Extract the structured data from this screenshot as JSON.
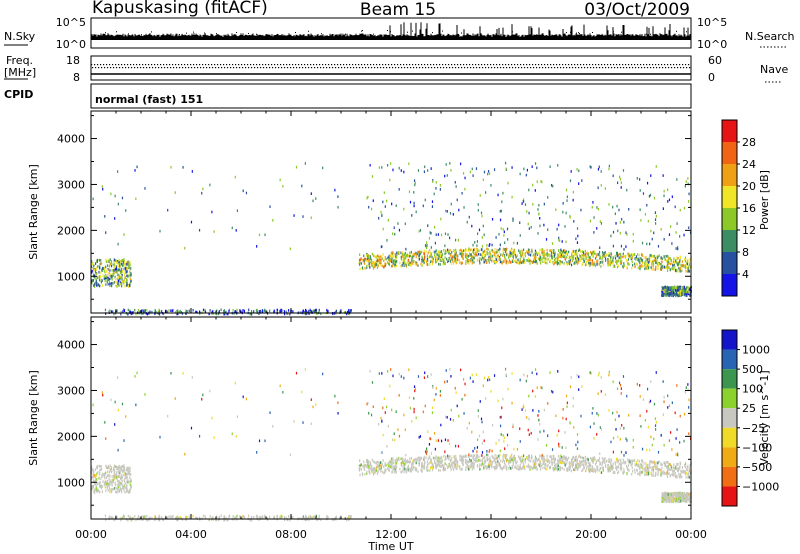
{
  "header": {
    "station": "Kapuskasing (fitACF)",
    "beam": "Beam 15",
    "date": "03/Oct/2009"
  },
  "top_panels": {
    "nsky": {
      "label": "N.Sky",
      "ticks": [
        "10^5",
        "10^0"
      ]
    },
    "nsearch": {
      "label": "N.Search",
      "ticks": [
        "10^5",
        "10^0"
      ]
    },
    "freq": {
      "label_line1": "Freq.",
      "label_line2": "[MHz]",
      "ticks": [
        "18",
        "8"
      ]
    },
    "nave": {
      "label": "Nave",
      "ticks": [
        "60",
        "0"
      ]
    },
    "cpid": {
      "label": "CPID",
      "mode": "normal (fast) 151"
    }
  },
  "colors": {
    "power": [
      "#1414e6",
      "#2850a0",
      "#3c8c64",
      "#8cc828",
      "#f0e628",
      "#f0a014",
      "#f06414",
      "#e61414"
    ],
    "velocity": [
      "#1414c8",
      "#2864b4",
      "#3c9650",
      "#8cd22d",
      "#c8c8c0",
      "#f0dc28",
      "#f0aa14",
      "#f06e14",
      "#e61414"
    ]
  },
  "chart_data": [
    {
      "type": "heatmap",
      "title": "Power",
      "ylabel": "Slant Range [km]",
      "xlabel": "Time UT",
      "x_ticks": [
        "00:00",
        "04:00",
        "08:00",
        "12:00",
        "16:00",
        "20:00",
        "00:00"
      ],
      "xlim_hours": [
        0,
        24
      ],
      "ylim": [
        200,
        4600
      ],
      "y_ticks": [
        1000,
        2000,
        3000,
        4000
      ],
      "colorbar": {
        "label": "Power [dB]",
        "ticks": [
          4,
          8,
          12,
          16,
          20,
          24,
          28
        ],
        "range": [
          0,
          32
        ]
      },
      "features": [
        {
          "name": "morning patch",
          "hours": [
            0.0,
            1.6
          ],
          "range_km": [
            800,
            1400
          ],
          "power_db": 12
        },
        {
          "name": "ground scatter band",
          "hours": [
            0.5,
            10.5
          ],
          "range_km": [
            200,
            300
          ],
          "power_db": 6
        },
        {
          "name": "main echo band",
          "hours": [
            10.7,
            24.0
          ],
          "range_km": [
            1200,
            1600
          ],
          "power_db": 16
        },
        {
          "name": "late low band",
          "hours": [
            22.8,
            24.0
          ],
          "range_km": [
            600,
            800
          ],
          "power_db": 10
        }
      ]
    },
    {
      "type": "heatmap",
      "title": "Velocity",
      "ylabel": "Slant Range [km]",
      "xlabel": "Time UT",
      "x_ticks": [
        "00:00",
        "04:00",
        "08:00",
        "12:00",
        "16:00",
        "20:00",
        "00:00"
      ],
      "xlim_hours": [
        0,
        24
      ],
      "ylim": [
        200,
        4600
      ],
      "y_ticks": [
        1000,
        2000,
        3000,
        4000
      ],
      "colorbar": {
        "label": "Velocity [m s^-1]",
        "ticks": [
          "1000",
          "500",
          "100",
          "25",
          "−25",
          "−100",
          "−500",
          "−1000"
        ]
      },
      "features": [
        {
          "name": "morning patch",
          "hours": [
            0.0,
            1.6
          ],
          "range_km": [
            900,
            1400
          ],
          "velocity_ms": 0
        },
        {
          "name": "main echo band",
          "hours": [
            10.7,
            24.0
          ],
          "range_km": [
            1200,
            1600
          ],
          "velocity_ms": 0
        }
      ]
    }
  ],
  "axis_title": "Time UT"
}
